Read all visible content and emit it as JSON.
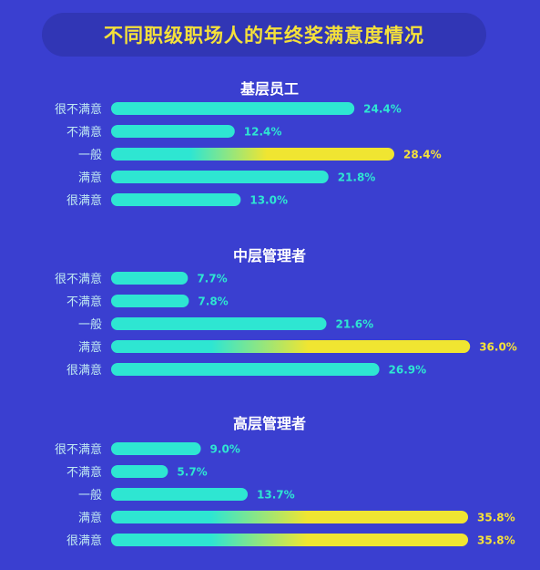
{
  "title": "不同职级职场人的年终奖满意度情况",
  "colors": {
    "background": "#3a3fd0",
    "title_pill": "#3136b5",
    "title_text": "#f5e13a",
    "bar": "#2ee6d2",
    "bar_highlight": "#f0e531",
    "value_label": "#2ee6d2",
    "value_label_highlight": "#f5e13a"
  },
  "chart_data": [
    {
      "type": "bar",
      "orientation": "horizontal",
      "title": "基层员工",
      "categories": [
        "很不满意",
        "不满意",
        "一般",
        "满意",
        "很满意"
      ],
      "values": [
        24.4,
        12.4,
        28.4,
        21.8,
        13.0
      ],
      "value_labels": [
        "24.4%",
        "12.4%",
        "28.4%",
        "21.8%",
        "13.0%"
      ],
      "highlight": [
        false,
        false,
        true,
        false,
        false
      ],
      "xlim": [
        0,
        36
      ]
    },
    {
      "type": "bar",
      "orientation": "horizontal",
      "title": "中层管理者",
      "categories": [
        "很不满意",
        "不满意",
        "一般",
        "满意",
        "很满意"
      ],
      "values": [
        7.7,
        7.8,
        21.6,
        36.0,
        26.9
      ],
      "value_labels": [
        "7.7%",
        "7.8%",
        "21.6%",
        "36.0%",
        "26.9%"
      ],
      "highlight": [
        false,
        false,
        false,
        true,
        false
      ],
      "xlim": [
        0,
        36
      ]
    },
    {
      "type": "bar",
      "orientation": "horizontal",
      "title": "高层管理者",
      "categories": [
        "很不满意",
        "不满意",
        "一般",
        "满意",
        "很满意"
      ],
      "values": [
        9.0,
        5.7,
        13.7,
        35.8,
        35.8
      ],
      "value_labels": [
        "9.0%",
        "5.7%",
        "13.7%",
        "35.8%",
        "35.8%"
      ],
      "highlight": [
        false,
        false,
        false,
        true,
        true
      ],
      "xlim": [
        0,
        36
      ]
    }
  ]
}
